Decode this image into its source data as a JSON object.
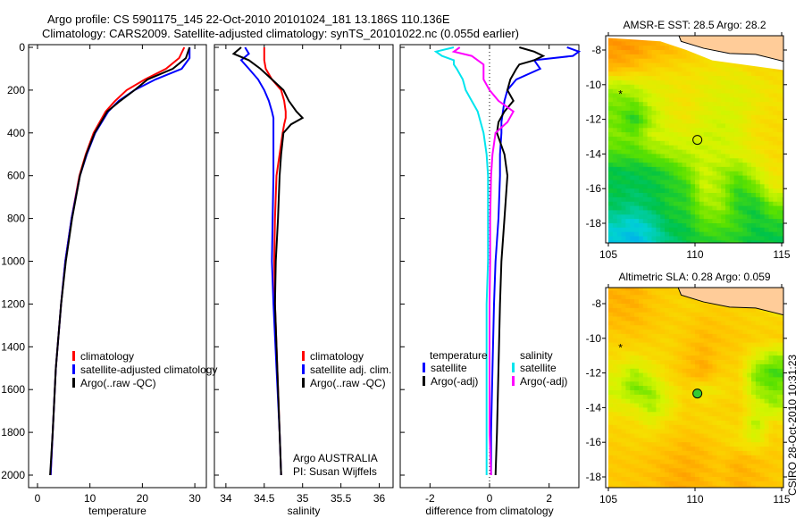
{
  "title_line1": "Argo profile: CS 5901175_145 22-Oct-2010 20101024_181 13.186S 110.136E",
  "title_line2": "Climatology: CARS2009. Satellite-adjusted climatology: synTS_20101022.nc (0.055d earlier)",
  "credit": "CSIRO 28-Oct-2010 10:31:23",
  "colors": {
    "climatology": "#ff0000",
    "satellite": "#0000ff",
    "argo": "#000000",
    "sal_satellite": "#00e5ee",
    "sal_argo": "#ff00ff"
  },
  "chart_data": [
    {
      "type": "line",
      "xlabel": "temperature",
      "ylabel": "",
      "xlim": [
        -2,
        32
      ],
      "ylim": [
        2000,
        0
      ],
      "xticks": [
        "0",
        "10",
        "20",
        "30"
      ],
      "xtick_values": [
        0,
        10,
        20,
        30
      ],
      "yticks": [
        "0",
        "200",
        "400",
        "600",
        "800",
        "1000",
        "1200",
        "1400",
        "1600",
        "1800",
        "2000"
      ],
      "legend": [
        "climatology",
        "satellite-adjusted climatology",
        "Argo(..raw -QC)"
      ],
      "depth": [
        0,
        50,
        100,
        150,
        200,
        250,
        300,
        400,
        500,
        600,
        800,
        1000,
        1200,
        1500,
        1800,
        2000
      ],
      "series": [
        {
          "name": "climatology",
          "color": "#ff0000",
          "values": [
            28,
            27,
            24.5,
            20.5,
            17,
            14.8,
            13,
            10.7,
            9.2,
            8,
            6.5,
            5.3,
            4.5,
            3.5,
            2.9,
            2.5
          ]
        },
        {
          "name": "satellite-adjusted climatology",
          "color": "#0000ff",
          "values": [
            29,
            29,
            27.5,
            22.5,
            18.5,
            15.5,
            13.5,
            11,
            9.4,
            8.1,
            6.5,
            5.3,
            4.5,
            3.5,
            2.9,
            2.5
          ]
        },
        {
          "name": "Argo(..raw -QC)",
          "color": "#000000",
          "values": [
            29,
            28.3,
            25.8,
            21,
            18.5,
            15.8,
            13.3,
            10.9,
            9.3,
            8.1,
            6.6,
            5.4,
            4.5,
            3.5,
            2.9,
            2.4
          ]
        }
      ]
    },
    {
      "type": "line",
      "xlabel": "salinity",
      "xlim": [
        33.8,
        36.1
      ],
      "ylim": [
        2000,
        0
      ],
      "xticks": [
        "34",
        "34.5",
        "35",
        "35.5",
        "36"
      ],
      "xtick_values": [
        34,
        34.5,
        35,
        35.5,
        36
      ],
      "legend": [
        "climatology",
        "satellite adj. clim.",
        "Argo(..raw -QC)"
      ],
      "annotation": [
        "Argo AUSTRALIA",
        "PI: Susan Wijffels"
      ],
      "depth": [
        0,
        30,
        60,
        100,
        150,
        200,
        250,
        300,
        330,
        360,
        400,
        500,
        600,
        800,
        1000,
        1200,
        1500,
        1800,
        2000
      ],
      "series": [
        {
          "name": "climatology",
          "color": "#ff0000",
          "values": [
            34.5,
            34.5,
            34.5,
            34.52,
            34.6,
            34.72,
            34.76,
            34.78,
            34.78,
            34.76,
            34.74,
            34.7,
            34.66,
            34.64,
            34.63,
            34.64,
            34.67,
            34.7,
            34.72
          ]
        },
        {
          "name": "satellite adj. clim.",
          "color": "#0000ff",
          "values": [
            34.25,
            34.3,
            34.2,
            34.3,
            34.42,
            34.5,
            34.56,
            34.6,
            34.62,
            34.62,
            34.62,
            34.62,
            34.62,
            34.61,
            34.6,
            34.62,
            34.66,
            34.7,
            34.72
          ]
        },
        {
          "name": "Argo(..raw -QC)",
          "color": "#000000",
          "values": [
            34.2,
            34.1,
            34.3,
            34.45,
            34.6,
            34.75,
            34.82,
            34.92,
            35.0,
            34.85,
            34.75,
            34.72,
            34.7,
            34.68,
            34.65,
            34.64,
            34.67,
            34.7,
            34.72
          ]
        }
      ]
    },
    {
      "type": "line",
      "xlabel": "difference from climatology",
      "xlim": [
        -3,
        3
      ],
      "ylim": [
        2000,
        0
      ],
      "xticks": [
        "-2",
        "0",
        "2"
      ],
      "xtick_values": [
        -2,
        0,
        2
      ],
      "legend_temperature": {
        "title": "temperature",
        "items": [
          "satellite",
          "Argo(-adj)"
        ]
      },
      "legend_salinity": {
        "title": "salinity",
        "items": [
          "satellite",
          "Argo(-adj)"
        ]
      },
      "depth": [
        0,
        20,
        40,
        60,
        80,
        100,
        150,
        200,
        250,
        300,
        350,
        400,
        500,
        600,
        800,
        1000,
        1200,
        1500,
        1800,
        2000
      ],
      "series": [
        {
          "name": "temperature satellite",
          "color": "#0000ff",
          "values": [
            2.6,
            3.0,
            2.8,
            1.5,
            1.6,
            1.7,
            0.9,
            0.6,
            0.5,
            0.45,
            0.4,
            0.4,
            0.35,
            0.35,
            0.3,
            0.2,
            0.15,
            0.1,
            0.05,
            0.05
          ]
        },
        {
          "name": "temperature Argo(-adj)",
          "color": "#000000",
          "values": [
            1.0,
            1.5,
            1.8,
            1.5,
            1.0,
            0.9,
            0.7,
            0.6,
            0.8,
            0.5,
            0.3,
            0.25,
            0.5,
            0.6,
            0.5,
            0.4,
            0.35,
            0.3,
            0.25,
            0.2
          ]
        },
        {
          "name": "salinity satellite",
          "color": "#00e5ee",
          "values": [
            -1.2,
            -1.8,
            -1.6,
            -1.2,
            -1.2,
            -1.1,
            -0.9,
            -0.8,
            -0.6,
            -0.4,
            -0.3,
            -0.2,
            -0.1,
            -0.05,
            -0.05,
            -0.05,
            -0.1,
            -0.1,
            -0.1,
            -0.1
          ]
        },
        {
          "name": "salinity Argo(-adj)",
          "color": "#ff00ff",
          "values": [
            -1.0,
            -1.2,
            -0.6,
            -0.4,
            -0.2,
            -0.2,
            -0.2,
            0.0,
            0.3,
            0.8,
            0.6,
            0.2,
            0.1,
            0.05,
            0.02,
            0.02,
            0.0,
            0.0,
            0.0,
            0.05
          ]
        }
      ]
    },
    {
      "type": "heatmap",
      "title": "AMSR-E SST: 28.5 Argo: 28.2",
      "xlim": [
        105,
        115.3
      ],
      "ylim": [
        -19.1,
        -7.2
      ],
      "xticks": [
        "105",
        "110",
        "115"
      ],
      "xtick_values": [
        105,
        110,
        115
      ],
      "yticks": [
        "-8",
        "-10",
        "-12",
        "-14",
        "-16",
        "-18"
      ],
      "ytick_values": [
        -8,
        -10,
        -12,
        -14,
        -16,
        -18
      ],
      "lon": [
        105.5,
        106.5,
        107.5,
        108.5,
        109.5,
        110.5,
        111.5,
        112.5,
        113.5,
        114.5,
        115.5
      ],
      "lat": [
        -8,
        -9,
        -10,
        -11,
        -12,
        -13,
        -14,
        -15,
        -16,
        -17,
        -18,
        -19
      ],
      "values": [
        [
          0.85,
          0.85,
          0.8,
          0.78,
          0.75,
          0.72,
          0.7,
          0.7,
          0.7,
          0.7,
          0.7
        ],
        [
          0.8,
          0.76,
          0.72,
          0.7,
          0.68,
          0.66,
          0.65,
          0.65,
          0.7,
          0.7,
          0.7
        ],
        [
          0.52,
          0.56,
          0.6,
          0.62,
          0.65,
          0.62,
          0.6,
          0.6,
          0.62,
          0.66,
          0.66
        ],
        [
          0.45,
          0.45,
          0.55,
          0.62,
          0.66,
          0.6,
          0.58,
          0.58,
          0.62,
          0.66,
          0.66
        ],
        [
          0.45,
          0.34,
          0.5,
          0.6,
          0.64,
          0.58,
          0.55,
          0.58,
          0.66,
          0.68,
          0.68
        ],
        [
          0.46,
          0.45,
          0.55,
          0.56,
          0.58,
          0.55,
          0.55,
          0.58,
          0.66,
          0.68,
          0.68
        ],
        [
          0.4,
          0.4,
          0.45,
          0.5,
          0.52,
          0.55,
          0.55,
          0.58,
          0.62,
          0.68,
          0.68
        ],
        [
          0.3,
          0.3,
          0.32,
          0.36,
          0.45,
          0.55,
          0.5,
          0.45,
          0.55,
          0.65,
          0.65
        ],
        [
          0.3,
          0.28,
          0.3,
          0.34,
          0.36,
          0.55,
          0.5,
          0.36,
          0.44,
          0.6,
          0.6
        ],
        [
          0.27,
          0.24,
          0.28,
          0.34,
          0.36,
          0.48,
          0.5,
          0.35,
          0.32,
          0.45,
          0.45
        ],
        [
          0.18,
          0.14,
          0.2,
          0.3,
          0.32,
          0.42,
          0.42,
          0.38,
          0.32,
          0.35,
          0.35
        ],
        [
          0.12,
          0.08,
          0.16,
          0.25,
          0.3,
          0.35,
          0.35,
          0.35,
          0.3,
          0.3,
          0.3
        ]
      ],
      "marker": {
        "lon": 110.136,
        "lat": -13.186
      },
      "star": {
        "lon": 105.7,
        "lat": -10.5
      }
    },
    {
      "type": "heatmap",
      "title": "Altimetric SLA: 0.28 Argo: 0.059",
      "xlim": [
        105,
        115.3
      ],
      "ylim": [
        -18.7,
        -7.1
      ],
      "xticks": [
        "105",
        "110",
        "115"
      ],
      "xtick_values": [
        105,
        110,
        115
      ],
      "yticks": [
        "-8",
        "-10",
        "-12",
        "-14",
        "-16",
        "-18"
      ],
      "ytick_values": [
        -8,
        -10,
        -12,
        -14,
        -16,
        -18
      ],
      "lon": [
        105.5,
        106.5,
        107.5,
        108.5,
        109.5,
        110.5,
        111.5,
        112.5,
        113.5,
        114.5,
        115.5
      ],
      "lat": [
        -8,
        -9,
        -10,
        -11,
        -12,
        -13,
        -14,
        -15,
        -16,
        -17,
        -18,
        -19
      ],
      "values": [
        [
          0.8,
          0.8,
          0.75,
          0.72,
          0.7,
          0.7,
          0.72,
          0.72,
          0.7,
          0.62,
          0.6
        ],
        [
          0.78,
          0.78,
          0.75,
          0.72,
          0.72,
          0.76,
          0.74,
          0.72,
          0.7,
          0.7,
          0.7
        ],
        [
          0.72,
          0.74,
          0.72,
          0.7,
          0.74,
          0.78,
          0.76,
          0.74,
          0.72,
          0.72,
          0.72
        ],
        [
          0.68,
          0.65,
          0.68,
          0.7,
          0.76,
          0.8,
          0.74,
          0.72,
          0.6,
          0.5,
          0.5
        ],
        [
          0.6,
          0.5,
          0.6,
          0.7,
          0.76,
          0.82,
          0.72,
          0.7,
          0.45,
          0.38,
          0.4
        ],
        [
          0.55,
          0.45,
          0.48,
          0.62,
          0.7,
          0.62,
          0.66,
          0.7,
          0.5,
          0.45,
          0.5
        ],
        [
          0.62,
          0.6,
          0.5,
          0.6,
          0.72,
          0.7,
          0.72,
          0.72,
          0.6,
          0.5,
          0.55
        ],
        [
          0.7,
          0.68,
          0.62,
          0.7,
          0.72,
          0.7,
          0.68,
          0.7,
          0.5,
          0.7,
          0.65
        ],
        [
          0.72,
          0.7,
          0.72,
          0.74,
          0.78,
          0.76,
          0.72,
          0.66,
          0.6,
          0.72,
          0.7
        ],
        [
          0.74,
          0.74,
          0.76,
          0.78,
          0.8,
          0.78,
          0.74,
          0.8,
          0.76,
          0.74,
          0.72
        ],
        [
          0.74,
          0.75,
          0.76,
          0.8,
          0.82,
          0.78,
          0.76,
          0.8,
          0.78,
          0.74,
          0.72
        ],
        [
          0.74,
          0.75,
          0.76,
          0.8,
          0.82,
          0.78,
          0.76,
          0.8,
          0.78,
          0.74,
          0.72
        ]
      ],
      "marker": {
        "lon": 110.136,
        "lat": -13.186
      },
      "star": {
        "lon": 105.7,
        "lat": -10.5
      }
    }
  ]
}
